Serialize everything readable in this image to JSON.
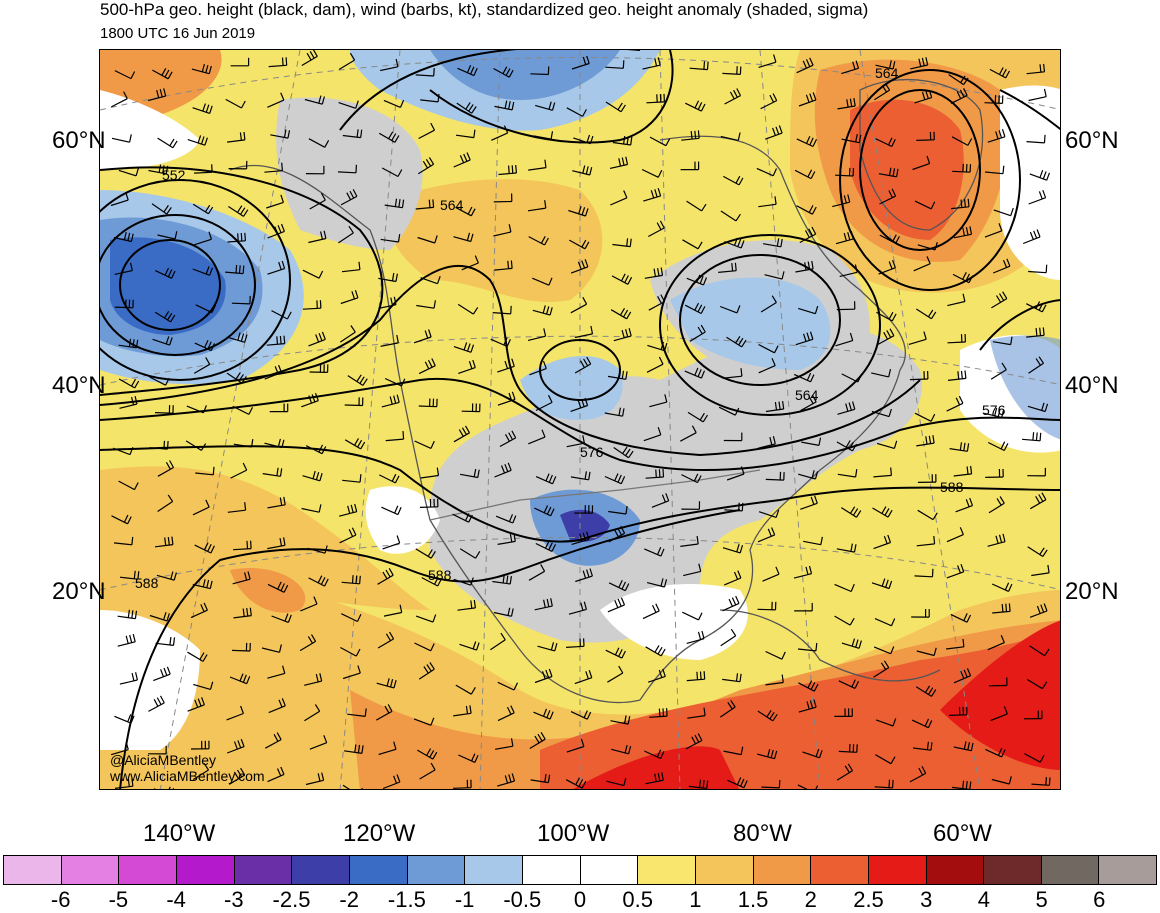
{
  "header": {
    "title": "500-hPa geo. height (black, dam), wind (barbs, kt), standardized geo. height anomaly (shaded, sigma)",
    "valid_time": "1800 UTC 16 Jun 2019"
  },
  "map": {
    "lat_labels": [
      "60°N",
      "40°N",
      "20°N"
    ],
    "lon_labels": [
      "140°W",
      "120°W",
      "100°W",
      "80°W",
      "60°W"
    ],
    "contour_labels": [
      "564",
      "552",
      "564",
      "564",
      "576",
      "576",
      "588",
      "588",
      "588"
    ],
    "watermark": [
      "@AliciaMBentley",
      "www.AliciaMBentley.com"
    ]
  },
  "colorbar": {
    "labels": [
      "-6",
      "-5",
      "-4",
      "-3",
      "-2.5",
      "-2",
      "-1.5",
      "-1",
      "-0.5",
      "0",
      "0.5",
      "1",
      "1.5",
      "2",
      "2.5",
      "3",
      "4",
      "5",
      "6"
    ],
    "colors": [
      "#ebb7eb",
      "#e47fe4",
      "#d44ad4",
      "#b419cc",
      "#6a2fa6",
      "#3e3ea8",
      "#3a6cc6",
      "#6e9bd6",
      "#a7c8e8",
      "#ffffff",
      "#ffffff",
      "#f9e66e",
      "#f4c55a",
      "#f09a48",
      "#ec5f32",
      "#e51b18",
      "#a30d0d",
      "#6e2a2a",
      "#726862",
      "#a79c9a"
    ]
  }
}
